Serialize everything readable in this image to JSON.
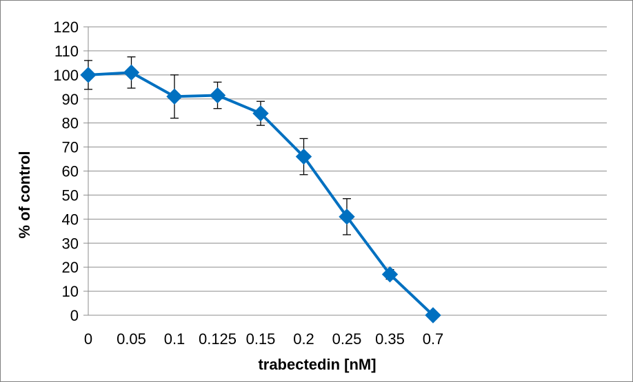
{
  "chart_data": {
    "type": "line",
    "title": "",
    "xlabel": "trabectedin [nM]",
    "ylabel": "% of control",
    "categories": [
      "0",
      "0.05",
      "0.1",
      "0.125",
      "0.15",
      "0.2",
      "0.25",
      "0.35",
      "0.7"
    ],
    "series": [
      {
        "values": [
          100,
          101,
          91,
          91.5,
          84,
          66,
          41,
          17,
          0
        ],
        "error": [
          6,
          6.5,
          9,
          5.5,
          5,
          7.5,
          7.5,
          2,
          0
        ]
      }
    ],
    "ylim": [
      0,
      120
    ],
    "yticks": [
      0,
      10,
      20,
      30,
      40,
      50,
      60,
      70,
      80,
      90,
      100,
      110,
      120
    ],
    "grid": "horizontal",
    "legend": "none",
    "colors": {
      "series": "#0070c0",
      "grid": "#8c8c8c",
      "error": "#000000",
      "frame": "#7f7f7f"
    },
    "marker": "diamond"
  }
}
